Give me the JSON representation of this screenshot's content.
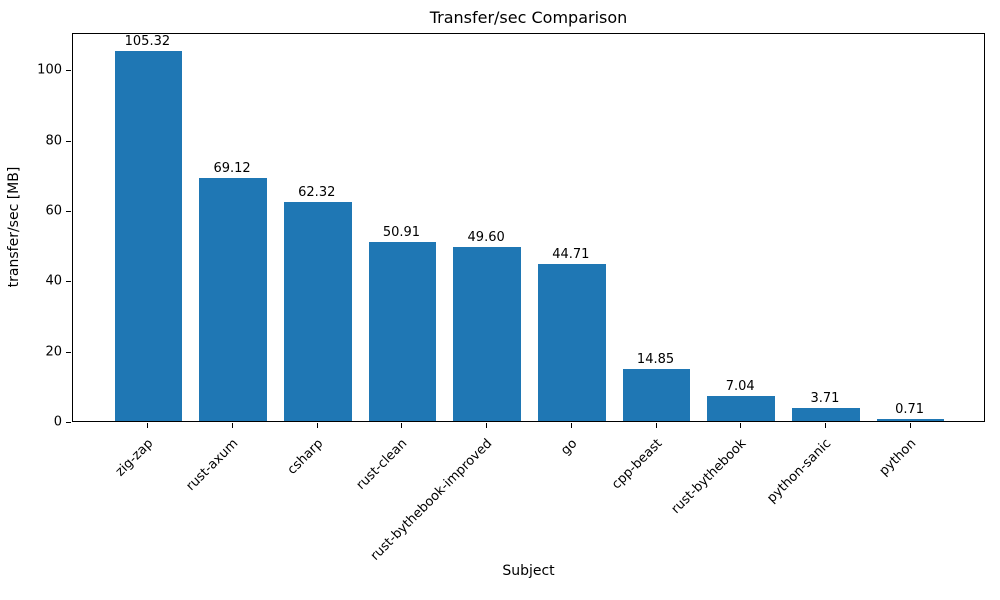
{
  "chart_data": {
    "type": "bar",
    "title": "Transfer/sec Comparison",
    "xlabel": "Subject",
    "ylabel": "transfer/sec [MB]",
    "categories": [
      "zig-zap",
      "rust-axum",
      "csharp",
      "rust-clean",
      "rust-bythebook-improved",
      "go",
      "cpp-beast",
      "rust-bythebook",
      "python-sanic",
      "python"
    ],
    "values": [
      105.32,
      69.12,
      62.32,
      50.91,
      49.6,
      44.71,
      14.85,
      7.04,
      3.71,
      0.71
    ],
    "value_labels": [
      "105.32",
      "69.12",
      "62.32",
      "50.91",
      "49.60",
      "44.71",
      "14.85",
      "7.04",
      "3.71",
      "0.71"
    ],
    "yticks": [
      0,
      20,
      40,
      60,
      80,
      100
    ],
    "ylim": [
      0,
      110.6
    ],
    "bar_color": "#1f77b4",
    "grid": false,
    "legend": null,
    "x_tick_rotation_deg": 45
  }
}
